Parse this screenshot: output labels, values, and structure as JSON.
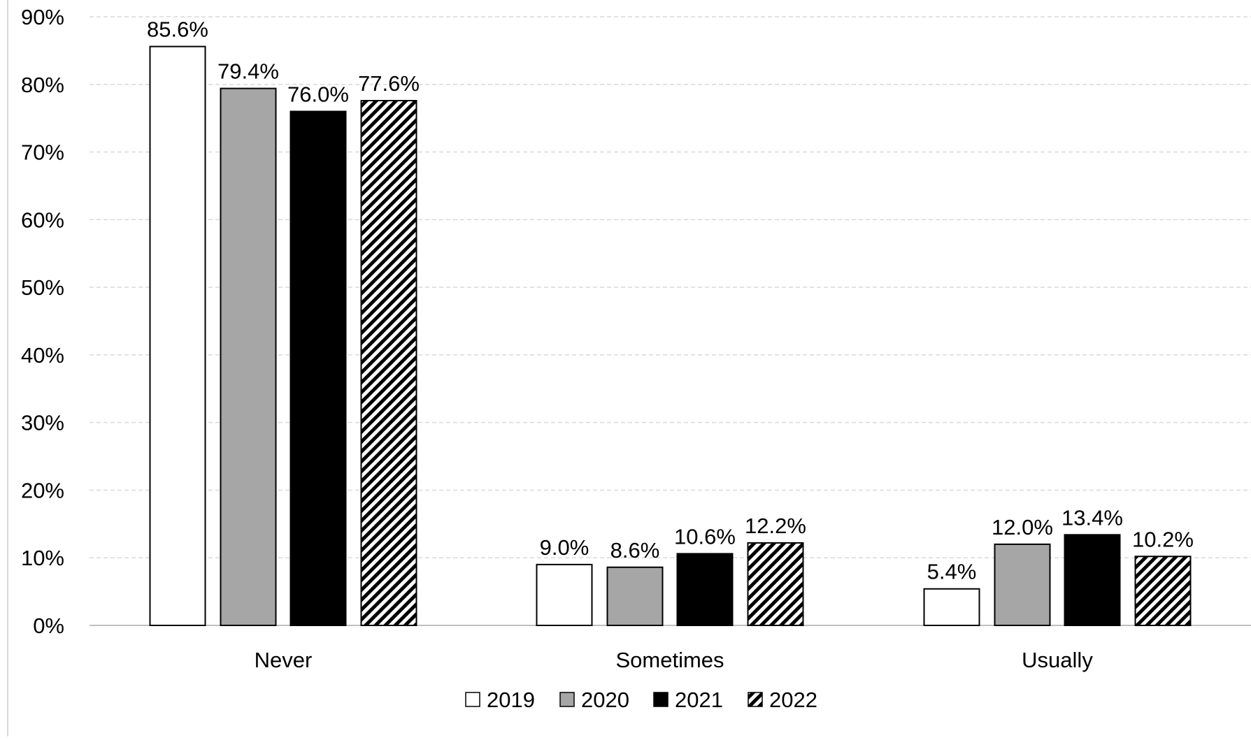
{
  "chart_data": {
    "type": "bar",
    "title": "",
    "xlabel": "",
    "ylabel": "",
    "categories": [
      "Never",
      "Sometimes",
      "Usually"
    ],
    "series": [
      {
        "name": "2019",
        "values": [
          85.6,
          9.0,
          5.4
        ],
        "labels": [
          "85.6%",
          "9.0%",
          "5.4%"
        ],
        "fill": "#ffffff",
        "pattern": "none"
      },
      {
        "name": "2020",
        "values": [
          79.4,
          8.6,
          12.0
        ],
        "labels": [
          "79.4%",
          "8.6%",
          "12.0%"
        ],
        "fill": "#a6a6a6",
        "pattern": "none"
      },
      {
        "name": "2021",
        "values": [
          76.0,
          10.6,
          13.4
        ],
        "labels": [
          "76.0%",
          "10.6%",
          "13.4%"
        ],
        "fill": "#000000",
        "pattern": "none"
      },
      {
        "name": "2022",
        "values": [
          77.6,
          12.2,
          10.2
        ],
        "labels": [
          "77.6%",
          "12.2%",
          "10.2%"
        ],
        "fill": "#ffffff",
        "pattern": "diagonal-stripes"
      }
    ],
    "ylim": [
      0,
      90
    ],
    "y_ticks": [
      0,
      10,
      20,
      30,
      40,
      50,
      60,
      70,
      80,
      90
    ],
    "y_tick_labels": [
      "0%",
      "10%",
      "20%",
      "30%",
      "40%",
      "50%",
      "60%",
      "70%",
      "80%",
      "90%"
    ],
    "grid": true,
    "grid_style": "dashed",
    "legend_position": "bottom-center"
  },
  "colors": {
    "grid": "#d9d9d9",
    "axis": "#bfbfbf",
    "bar_stroke": "#000000"
  }
}
